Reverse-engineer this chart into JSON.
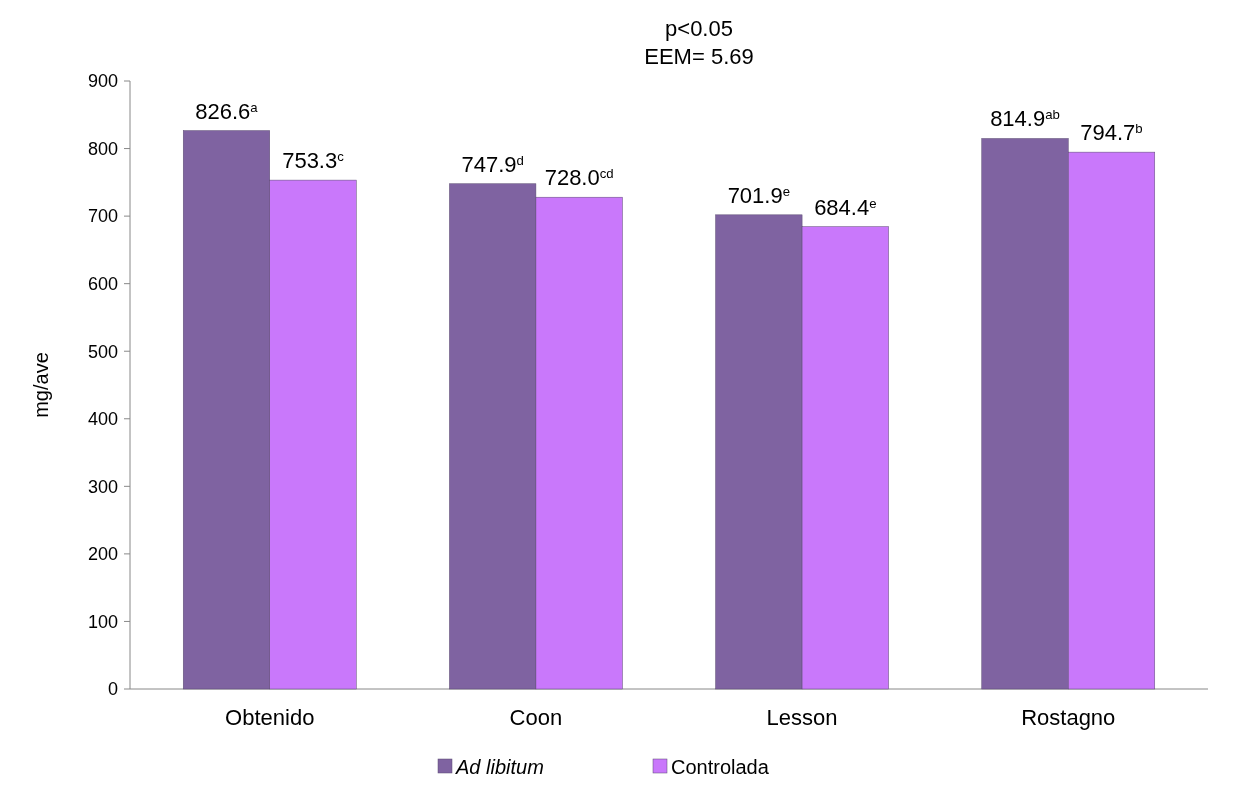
{
  "chart_data": {
    "type": "bar",
    "ylabel": "mg/ave",
    "annotations": [
      "p<0.05",
      "EEM= 5.69"
    ],
    "categories": [
      "Obtenido",
      "Coon",
      "Lesson",
      "Rostagno"
    ],
    "series": [
      {
        "name": "Ad libitum",
        "color": "#7f63a1",
        "values": [
          826.6,
          747.9,
          701.9,
          814.9
        ],
        "value_labels": [
          "826.6$^{a}$",
          "747.9$^{d}$",
          "701.9$^{e}$",
          "814.9$^{ab}$"
        ]
      },
      {
        "name": "Controlada",
        "color": "#c978fb",
        "values": [
          753.3,
          728.0,
          684.4,
          794.7
        ],
        "value_labels": [
          "753.3$^{c}$",
          "728.0$^{cd}$",
          "684.4$^{e}$",
          "794.7$^{b}$"
        ]
      }
    ],
    "ylim": [
      0,
      900
    ],
    "yticks": [
      0,
      100,
      200,
      300,
      400,
      500,
      600,
      700,
      800,
      900
    ],
    "legend": "bottom"
  }
}
